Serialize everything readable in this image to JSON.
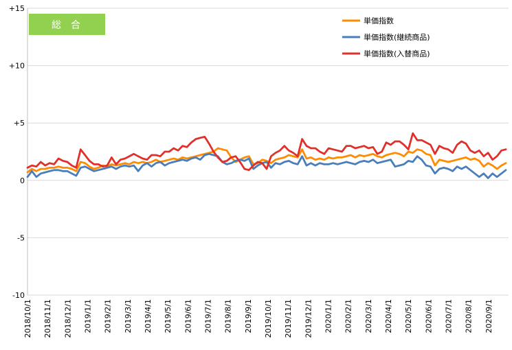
{
  "chart_data": {
    "type": "line",
    "badge": {
      "label": "総合",
      "color": "#92d050"
    },
    "legend_position": "top-right",
    "ylim": [
      -10,
      15
    ],
    "yticks": [
      {
        "value": 15,
        "label": "+15"
      },
      {
        "value": 10,
        "label": "+10"
      },
      {
        "value": 5,
        "label": "+5"
      },
      {
        "value": 0,
        "label": "0"
      },
      {
        "value": -5,
        "label": "-5"
      },
      {
        "value": -10,
        "label": "-10"
      }
    ],
    "xtick_labels": [
      "2018/10/1",
      "2018/11/1",
      "2018/12/1",
      "2019/1/1",
      "2019/2/1",
      "2019/3/1",
      "2019/4/1",
      "2019/5/1",
      "2019/6/1",
      "2019/7/1",
      "2019/8/1",
      "2019/9/1",
      "2019/10/1",
      "2019/11/1",
      "2019/12/1",
      "2020/1/1",
      "2020/2/1",
      "2020/3/1",
      "2020/4/1",
      "2020/5/1",
      "2020/6/1",
      "2020/7/1",
      "2020/8/1",
      "2020/9/1"
    ],
    "grid": {
      "horizontal": true,
      "vertical": false
    },
    "points_per_month": 4,
    "series": [
      {
        "name": "単価指数",
        "color": "#ff8c00",
        "values": [
          0.7,
          1.0,
          0.8,
          1.0,
          1.0,
          1.1,
          1.1,
          1.2,
          1.1,
          1.1,
          1.0,
          0.8,
          1.6,
          1.5,
          1.2,
          1.0,
          1.1,
          1.3,
          1.2,
          1.4,
          1.3,
          1.4,
          1.5,
          1.4,
          1.6,
          1.5,
          1.6,
          1.5,
          1.6,
          1.8,
          1.6,
          1.7,
          1.8,
          1.9,
          1.8,
          2.0,
          1.9,
          2.0,
          2.1,
          2.2,
          2.3,
          2.4,
          2.5,
          2.8,
          2.7,
          2.6,
          2.0,
          1.6,
          1.8,
          2.0,
          2.1,
          1.4,
          1.5,
          1.8,
          1.7,
          1.5,
          1.8,
          1.9,
          2.0,
          2.2,
          2.1,
          2.0,
          2.7,
          1.9,
          2.0,
          1.8,
          1.9,
          1.8,
          2.0,
          1.9,
          2.0,
          2.0,
          2.1,
          2.2,
          2.0,
          2.2,
          2.1,
          2.2,
          2.3,
          2.1,
          2.0,
          2.2,
          2.3,
          2.4,
          2.3,
          2.1,
          2.5,
          2.4,
          2.7,
          2.6,
          2.3,
          2.2,
          1.3,
          1.8,
          1.7,
          1.6,
          1.7,
          1.8,
          1.9,
          2.0,
          1.8,
          1.9,
          1.7,
          1.2,
          1.5,
          1.3,
          1.0,
          1.3,
          1.5
        ]
      },
      {
        "name": "単価指数(継続商品)",
        "color": "#4a7ebb",
        "values": [
          0.3,
          0.8,
          0.3,
          0.6,
          0.7,
          0.8,
          0.9,
          0.9,
          0.8,
          0.8,
          0.6,
          0.4,
          1.1,
          1.2,
          1.0,
          0.8,
          0.9,
          1.0,
          1.1,
          1.2,
          1.0,
          1.2,
          1.3,
          1.2,
          1.3,
          0.8,
          1.3,
          1.5,
          1.2,
          1.5,
          1.6,
          1.3,
          1.5,
          1.6,
          1.7,
          1.8,
          1.7,
          1.9,
          2.0,
          1.8,
          2.2,
          2.3,
          2.2,
          2.1,
          1.6,
          1.4,
          1.5,
          1.7,
          1.8,
          1.7,
          1.9,
          1.0,
          1.3,
          1.5,
          1.6,
          1.1,
          1.5,
          1.4,
          1.6,
          1.7,
          1.5,
          1.4,
          2.1,
          1.3,
          1.5,
          1.3,
          1.5,
          1.4,
          1.4,
          1.5,
          1.4,
          1.5,
          1.6,
          1.5,
          1.4,
          1.6,
          1.7,
          1.6,
          1.8,
          1.5,
          1.6,
          1.7,
          1.8,
          1.2,
          1.3,
          1.4,
          1.7,
          1.6,
          2.1,
          1.8,
          1.3,
          1.2,
          0.6,
          1.0,
          1.1,
          1.0,
          0.8,
          1.2,
          1.0,
          1.2,
          0.9,
          0.6,
          0.3,
          0.6,
          0.2,
          0.6,
          0.3,
          0.6,
          0.9
        ]
      },
      {
        "name": "単価指数(入替商品)",
        "color": "#e0302a",
        "values": [
          1.1,
          1.3,
          1.2,
          1.6,
          1.3,
          1.5,
          1.4,
          1.9,
          1.7,
          1.6,
          1.3,
          1.1,
          2.7,
          2.2,
          1.7,
          1.4,
          1.4,
          1.2,
          1.3,
          2.0,
          1.4,
          1.8,
          1.9,
          2.1,
          2.3,
          2.1,
          1.9,
          1.8,
          2.2,
          2.2,
          2.1,
          2.5,
          2.5,
          2.8,
          2.6,
          3.0,
          2.9,
          3.3,
          3.6,
          3.7,
          3.8,
          3.2,
          2.5,
          2.0,
          1.6,
          1.7,
          2.0,
          2.1,
          1.6,
          1.0,
          0.9,
          1.3,
          1.6,
          1.5,
          1.0,
          2.1,
          2.4,
          2.6,
          3.0,
          2.6,
          2.4,
          2.1,
          3.6,
          3.0,
          2.8,
          2.8,
          2.5,
          2.3,
          2.8,
          2.7,
          2.6,
          2.5,
          3.0,
          3.0,
          2.8,
          2.9,
          3.0,
          2.8,
          2.9,
          2.3,
          2.5,
          3.3,
          3.1,
          3.4,
          3.4,
          3.1,
          2.7,
          4.1,
          3.5,
          3.5,
          3.3,
          3.1,
          2.3,
          3.0,
          2.8,
          2.7,
          2.4,
          3.1,
          3.4,
          3.2,
          2.6,
          2.4,
          2.6,
          2.1,
          2.4,
          1.8,
          2.1,
          2.6,
          2.7
        ]
      }
    ]
  }
}
